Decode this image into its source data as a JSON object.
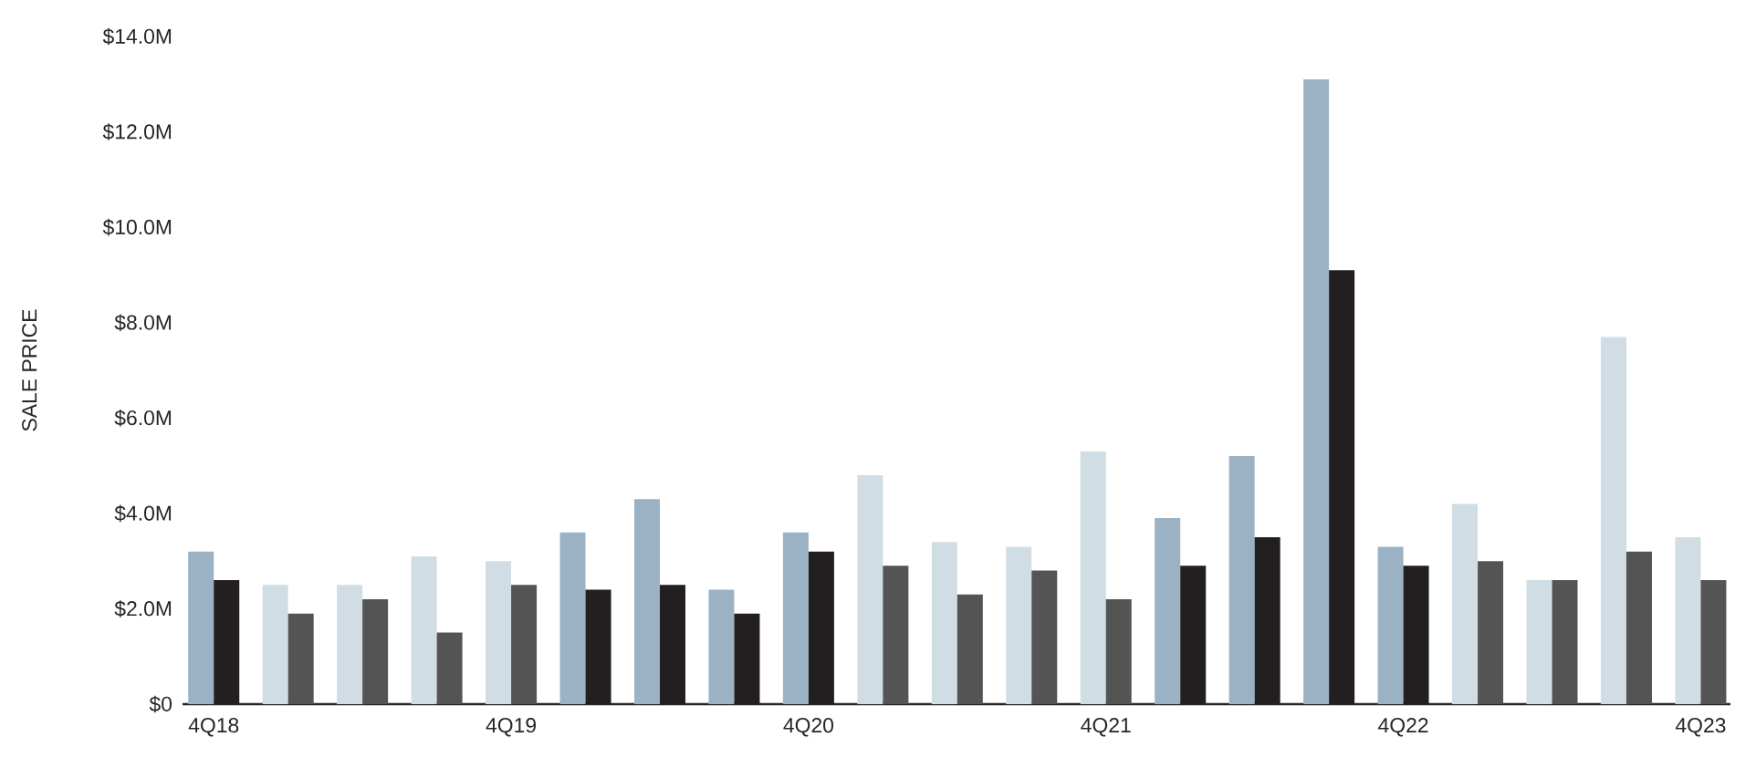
{
  "chart_data": {
    "type": "bar",
    "ylabel": "SALE PRICE",
    "categories": [
      "4Q18",
      null,
      null,
      null,
      "4Q19",
      null,
      null,
      null,
      "4Q20",
      null,
      null,
      null,
      "4Q21",
      null,
      null,
      null,
      "4Q22",
      null,
      null,
      null,
      "4Q23"
    ],
    "series": [
      {
        "values": [
          3.2,
          2.5,
          2.5,
          3.1,
          3.0,
          3.6,
          4.3,
          2.4,
          3.6,
          4.8,
          3.4,
          3.3,
          5.3,
          3.9,
          5.2,
          13.1,
          3.3,
          4.2,
          2.6,
          7.7,
          3.5
        ],
        "colors": [
          "#9bb2c4",
          "#d0dde5",
          "#d0dde5",
          "#d0dde5",
          "#d0dde5",
          "#9bb2c4",
          "#9bb2c4",
          "#9bb2c4",
          "#9bb2c4",
          "#d0dde5",
          "#d0dde5",
          "#d0dde5",
          "#d0dde5",
          "#9bb2c4",
          "#9bb2c4",
          "#9bb2c4",
          "#9bb2c4",
          "#d0dde5",
          "#d0dde5",
          "#d0dde5",
          "#d0dde5"
        ]
      },
      {
        "values": [
          2.6,
          1.9,
          2.2,
          1.5,
          2.5,
          2.4,
          2.5,
          1.9,
          3.2,
          2.9,
          2.3,
          2.8,
          2.2,
          2.9,
          3.5,
          9.1,
          2.9,
          3.0,
          2.6,
          3.2,
          2.6
        ],
        "colors": [
          "#231f20",
          "#545454",
          "#545454",
          "#545454",
          "#545454",
          "#231f20",
          "#231f20",
          "#231f20",
          "#231f20",
          "#545454",
          "#545454",
          "#545454",
          "#545454",
          "#231f20",
          "#231f20",
          "#231f20",
          "#231f20",
          "#545454",
          "#545454",
          "#545454",
          "#545454"
        ]
      }
    ],
    "ylim": [
      0,
      14
    ],
    "yticks": [
      {
        "value": 0,
        "label": "$0"
      },
      {
        "value": 2,
        "label": "$2.0M"
      },
      {
        "value": 4,
        "label": "$4.0M"
      },
      {
        "value": 6,
        "label": "$6.0M"
      },
      {
        "value": 8,
        "label": "$8.0M"
      },
      {
        "value": 10,
        "label": "$10.0M"
      },
      {
        "value": 12,
        "label": "$12.0M"
      },
      {
        "value": 14,
        "label": "$14.0M"
      }
    ],
    "relative": false
  }
}
